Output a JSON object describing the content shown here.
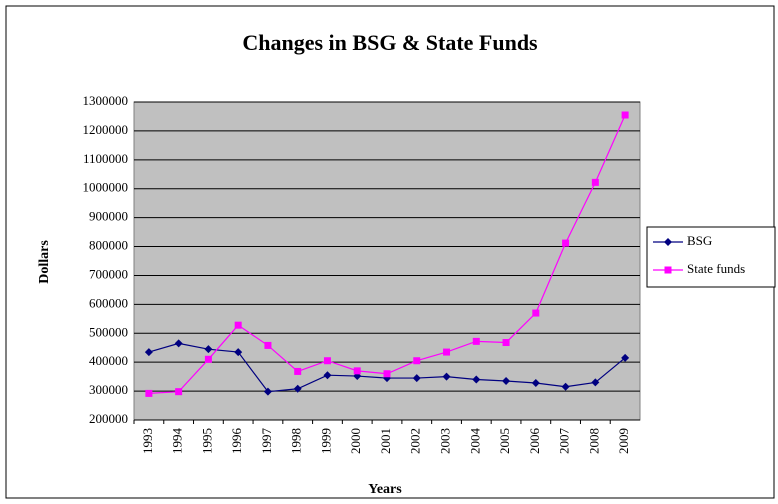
{
  "chart_data": {
    "type": "line",
    "title": "Changes in BSG & State Funds",
    "x_label": "Years",
    "y_label": "Dollars",
    "categories": [
      "1993",
      "1994",
      "1995",
      "1996",
      "1997",
      "1998",
      "1999",
      "2000",
      "2001",
      "2002",
      "2003",
      "2004",
      "2005",
      "2006",
      "2007",
      "2008",
      "2009"
    ],
    "series": [
      {
        "name": "BSG",
        "color": "#000080",
        "marker": "diamond",
        "values": [
          435000,
          465000,
          445000,
          435000,
          298000,
          308000,
          355000,
          352000,
          345000,
          345000,
          350000,
          340000,
          335000,
          328000,
          315000,
          330000,
          415000
        ]
      },
      {
        "name": "State funds",
        "color": "#ff00ff",
        "marker": "square",
        "values": [
          292000,
          298000,
          410000,
          528000,
          458000,
          368000,
          405000,
          370000,
          360000,
          405000,
          435000,
          472000,
          468000,
          570000,
          812000,
          1022000,
          1255000
        ]
      }
    ],
    "ylim": [
      200000,
      1300000
    ],
    "yticks": [
      200000,
      300000,
      400000,
      500000,
      600000,
      700000,
      800000,
      900000,
      1000000,
      1100000,
      1200000,
      1300000
    ],
    "grid": true,
    "legend": "right"
  }
}
